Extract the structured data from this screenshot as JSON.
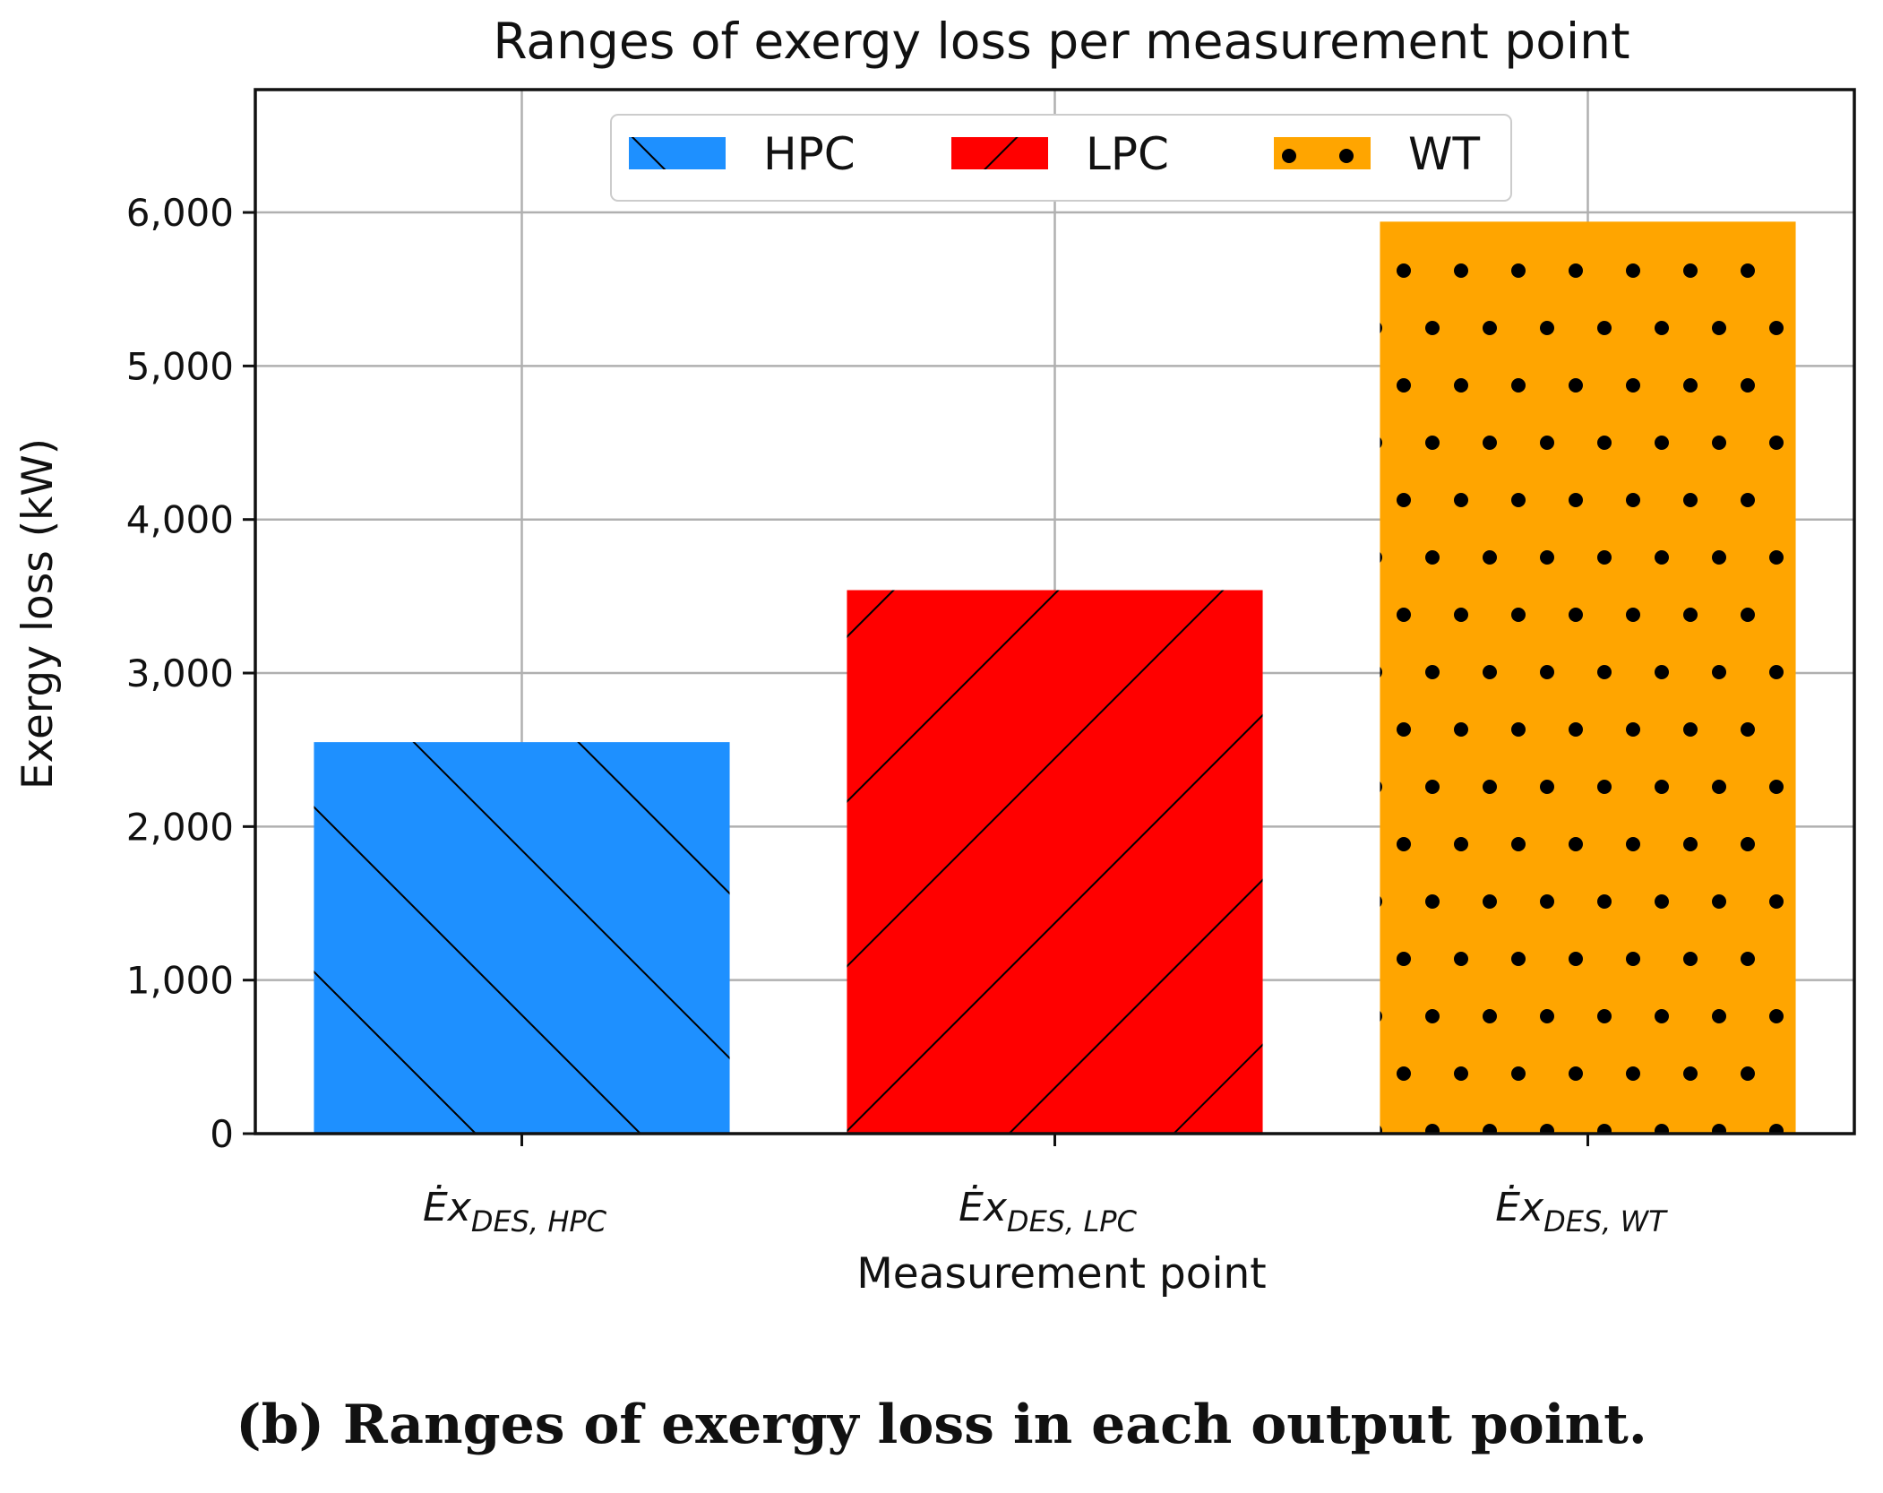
{
  "chart_data": {
    "type": "bar",
    "title": "Ranges of exergy loss per measurement point",
    "xlabel": "Measurement point",
    "ylabel": "Exergy loss (kW)",
    "ylim": [
      0,
      6800
    ],
    "yticks": [
      0,
      1000,
      2000,
      3000,
      4000,
      5000,
      6000
    ],
    "ytick_labels": [
      "0",
      "1,000",
      "2,000",
      "3,000",
      "4,000",
      "5,000",
      "6,000"
    ],
    "grid": true,
    "legend_position": "top-center",
    "categories": [
      {
        "main": "Ėx",
        "sub": "DES, HPC"
      },
      {
        "main": "Ėx",
        "sub": "DES, LPC"
      },
      {
        "main": "Ėx",
        "sub": "DES, WT"
      }
    ],
    "series": [
      {
        "name": "HPC",
        "value": 2550,
        "color": "#1E90FF",
        "hatch": "backslash"
      },
      {
        "name": "LPC",
        "value": 3540,
        "color": "#FF0000",
        "hatch": "slash"
      },
      {
        "name": "WT",
        "value": 5940,
        "color": "#FFA500",
        "hatch": "dots"
      }
    ]
  },
  "caption": "(b) Ranges of exergy loss in each output point."
}
